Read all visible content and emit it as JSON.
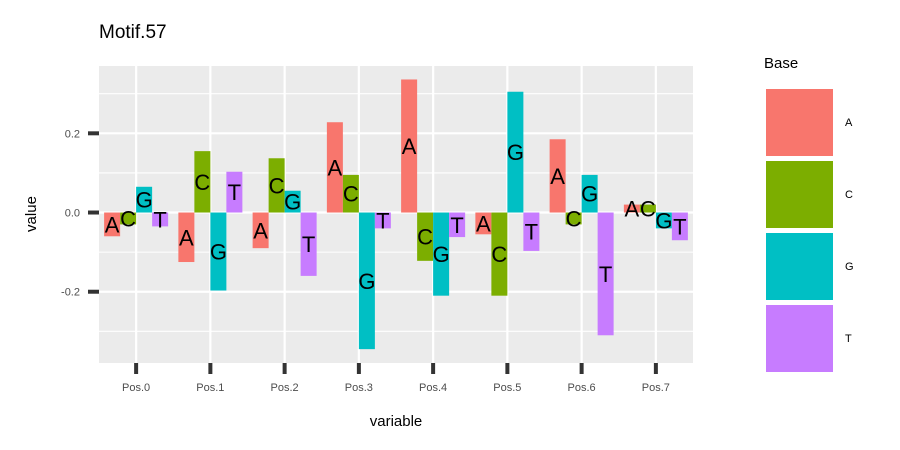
{
  "chart_data": {
    "type": "bar",
    "title": "Motif.57",
    "xlabel": "variable",
    "ylabel": "value",
    "categories": [
      "Pos.0",
      "Pos.1",
      "Pos.2",
      "Pos.3",
      "Pos.4",
      "Pos.5",
      "Pos.6",
      "Pos.7"
    ],
    "ylim": [
      -0.38,
      0.37
    ],
    "yticks": [
      -0.2,
      0.0,
      0.2
    ],
    "ytick_labels": [
      "-0.2",
      "0.0",
      "0.2"
    ],
    "grid": true,
    "legend": {
      "title": "Base",
      "position": "right"
    },
    "series": [
      {
        "name": "A",
        "color": "#F8766D",
        "values": [
          -0.06,
          -0.125,
          -0.09,
          0.228,
          0.336,
          -0.055,
          0.185,
          0.02
        ]
      },
      {
        "name": "C",
        "color": "#7CAE00",
        "values": [
          -0.03,
          0.155,
          0.137,
          0.095,
          -0.122,
          -0.21,
          -0.03,
          0.02
        ]
      },
      {
        "name": "G",
        "color": "#00BFC4",
        "values": [
          0.065,
          -0.197,
          0.055,
          -0.345,
          -0.21,
          0.305,
          0.095,
          -0.04
        ]
      },
      {
        "name": "T",
        "color": "#C77CFF",
        "values": [
          -0.035,
          0.103,
          -0.16,
          -0.04,
          -0.062,
          -0.097,
          -0.31,
          -0.07
        ]
      }
    ]
  }
}
